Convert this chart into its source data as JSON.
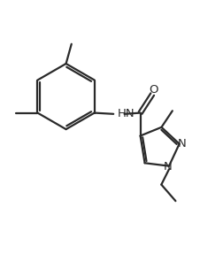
{
  "background_color": "#ffffff",
  "line_color": "#2a2a2a",
  "line_width": 1.6,
  "font_size": 9.5,
  "figsize": [
    2.53,
    3.12
  ],
  "dpi": 100,
  "xlim": [
    0,
    10
  ],
  "ylim": [
    0,
    12.4
  ]
}
